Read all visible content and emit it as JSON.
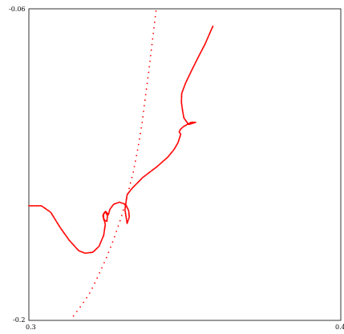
{
  "chart_data": {
    "type": "scatter",
    "title": "",
    "xlabel": "",
    "ylabel": "",
    "xlim": [
      0.3,
      0.4
    ],
    "ylim": [
      -0.2,
      -0.06
    ],
    "x_ticks": [
      "0.3",
      "0.4"
    ],
    "y_ticks": [
      "-0.06",
      "-0.2"
    ],
    "grid": false,
    "series": [
      {
        "style": "dotted",
        "color": "#ff0000",
        "points": [
          [
            0.3143,
            -0.198
          ],
          [
            0.3169,
            -0.1932
          ],
          [
            0.3198,
            -0.1871
          ],
          [
            0.3223,
            -0.1798
          ],
          [
            0.3248,
            -0.1721
          ],
          [
            0.3273,
            -0.1632
          ],
          [
            0.3297,
            -0.1533
          ],
          [
            0.3316,
            -0.1437
          ],
          [
            0.3335,
            -0.1332
          ],
          [
            0.335,
            -0.1224
          ],
          [
            0.3363,
            -0.1113
          ],
          [
            0.3373,
            -0.1002
          ],
          [
            0.3384,
            -0.0885
          ],
          [
            0.3394,
            -0.0768
          ],
          [
            0.3403,
            -0.0663
          ],
          [
            0.3408,
            -0.0604
          ]
        ]
      },
      {
        "style": "dense-dotted",
        "color": "#ff0000",
        "points": [
          [
            0.3,
            -0.1485
          ],
          [
            0.304,
            -0.1485
          ],
          [
            0.307,
            -0.1514
          ],
          [
            0.31,
            -0.1582
          ],
          [
            0.313,
            -0.1641
          ],
          [
            0.316,
            -0.1687
          ],
          [
            0.318,
            -0.1698
          ],
          [
            0.3205,
            -0.1694
          ],
          [
            0.3225,
            -0.1667
          ],
          [
            0.324,
            -0.1617
          ],
          [
            0.3245,
            -0.1568
          ],
          [
            0.324,
            -0.1541
          ],
          [
            0.3237,
            -0.1531
          ],
          [
            0.3245,
            -0.151
          ],
          [
            0.3252,
            -0.153
          ],
          [
            0.325,
            -0.1555
          ],
          [
            0.324,
            -0.1548
          ],
          [
            0.3239,
            -0.152
          ],
          [
            0.3248,
            -0.1512
          ],
          [
            0.3255,
            -0.1525
          ],
          [
            0.326,
            -0.15
          ],
          [
            0.3272,
            -0.1478
          ],
          [
            0.329,
            -0.1469
          ],
          [
            0.331,
            -0.1478
          ],
          [
            0.332,
            -0.1507
          ],
          [
            0.3322,
            -0.1536
          ],
          [
            0.3315,
            -0.1564
          ],
          [
            0.3308,
            -0.1502
          ],
          [
            0.3315,
            -0.1435
          ],
          [
            0.333,
            -0.1408
          ],
          [
            0.3365,
            -0.1358
          ],
          [
            0.341,
            -0.131
          ],
          [
            0.3445,
            -0.1267
          ],
          [
            0.3465,
            -0.1233
          ],
          [
            0.3478,
            -0.1202
          ],
          [
            0.3487,
            -0.1163
          ],
          [
            0.3482,
            -0.1154
          ],
          [
            0.3486,
            -0.1141
          ],
          [
            0.3497,
            -0.1128
          ],
          [
            0.352,
            -0.111
          ],
          [
            0.3535,
            -0.111
          ],
          [
            0.3512,
            -0.112
          ],
          [
            0.3497,
            -0.109
          ],
          [
            0.3493,
            -0.106
          ],
          [
            0.3489,
            -0.1019
          ],
          [
            0.349,
            -0.098
          ],
          [
            0.3502,
            -0.0935
          ],
          [
            0.352,
            -0.0882
          ],
          [
            0.3542,
            -0.082
          ],
          [
            0.3565,
            -0.0758
          ],
          [
            0.3583,
            -0.07
          ],
          [
            0.359,
            -0.0678
          ]
        ]
      }
    ]
  }
}
